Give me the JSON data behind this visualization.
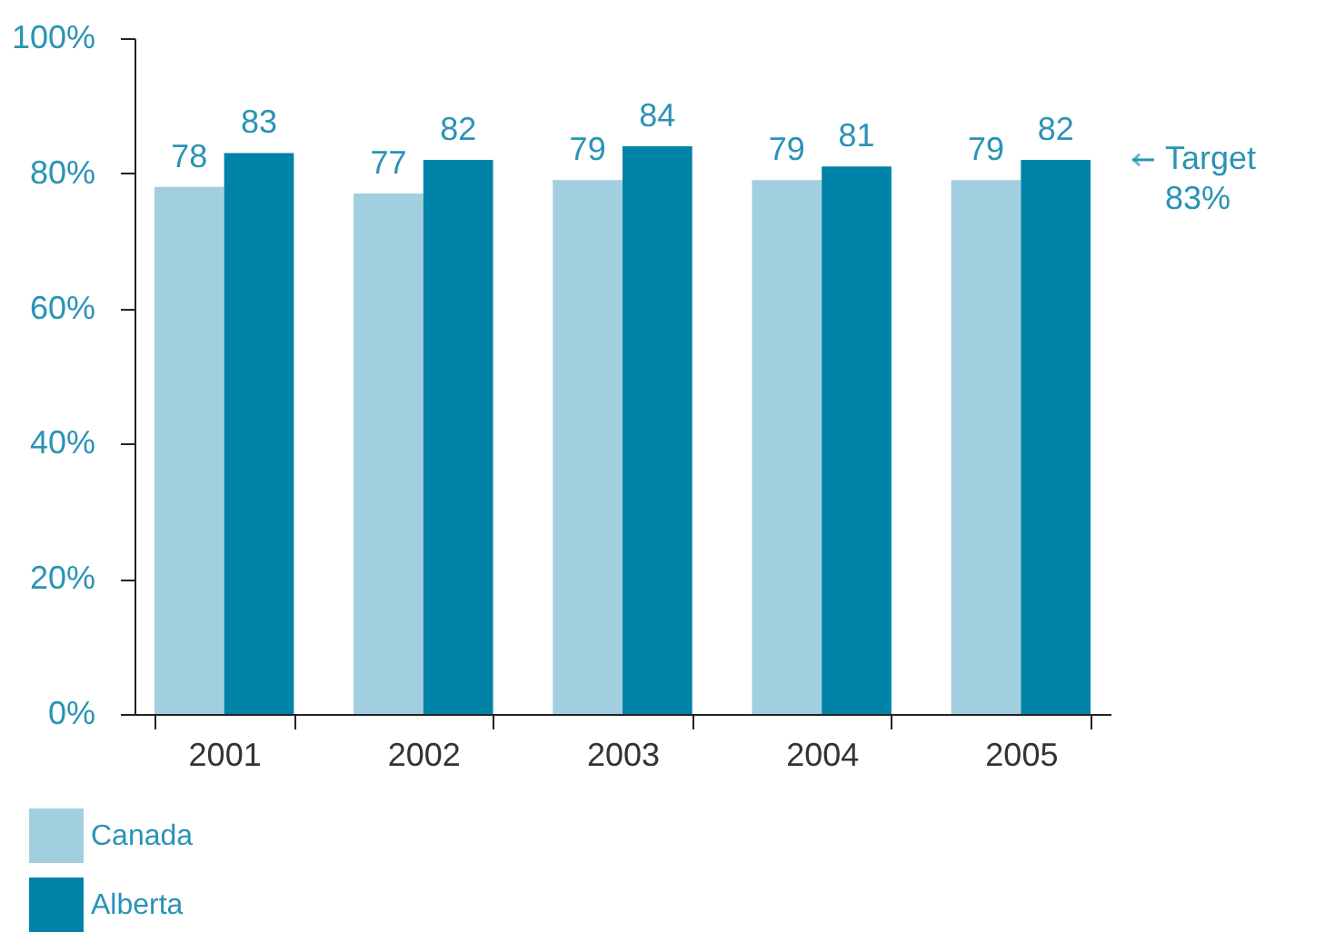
{
  "chart_data": {
    "type": "bar",
    "categories": [
      "2001",
      "2002",
      "2003",
      "2004",
      "2005"
    ],
    "series": [
      {
        "name": "Canada",
        "color": "#a2cfdf",
        "values": [
          78,
          77,
          79,
          79,
          79
        ]
      },
      {
        "name": "Alberta",
        "color": "#0083a9",
        "values": [
          83,
          82,
          84,
          81,
          82
        ]
      }
    ],
    "ylim": [
      0,
      100
    ],
    "yticks": [
      {
        "value": 0,
        "label": "0%"
      },
      {
        "value": 20,
        "label": "20%"
      },
      {
        "value": 40,
        "label": "40%"
      },
      {
        "value": 60,
        "label": "60%"
      },
      {
        "value": 80,
        "label": "80%"
      },
      {
        "value": 100,
        "label": "100%"
      }
    ],
    "data_labels": true,
    "annotations": [
      "Target\n83%"
    ],
    "legend": "bottom left",
    "grid": false
  }
}
